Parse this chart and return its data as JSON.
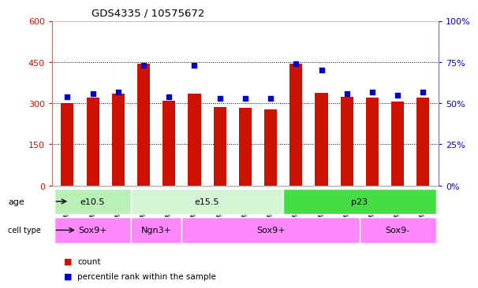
{
  "title": "GDS4335 / 10575672",
  "samples": [
    "GSM841156",
    "GSM841157",
    "GSM841158",
    "GSM841162",
    "GSM841163",
    "GSM841164",
    "GSM841159",
    "GSM841160",
    "GSM841161",
    "GSM841165",
    "GSM841166",
    "GSM841167",
    "GSM841168",
    "GSM841169",
    "GSM841170"
  ],
  "counts": [
    300,
    320,
    335,
    443,
    310,
    335,
    285,
    283,
    278,
    443,
    338,
    322,
    320,
    305,
    320
  ],
  "percentiles": [
    54,
    56,
    57,
    73,
    54,
    73,
    53,
    53,
    53,
    74,
    70,
    56,
    57,
    55,
    57
  ],
  "age_groups": [
    {
      "label": "e10.5",
      "start": 0,
      "end": 3,
      "color": "#b8f0b8"
    },
    {
      "label": "e15.5",
      "start": 3,
      "end": 9,
      "color": "#d4f5d4"
    },
    {
      "label": "p23",
      "start": 9,
      "end": 15,
      "color": "#44dd44"
    }
  ],
  "cell_type_groups": [
    {
      "label": "Sox9+",
      "start": 0,
      "end": 3,
      "color": "#ff88ff"
    },
    {
      "label": "Ngn3+",
      "start": 3,
      "end": 5,
      "color": "#ff88ff"
    },
    {
      "label": "Sox9+",
      "start": 5,
      "end": 12,
      "color": "#ff88ff"
    },
    {
      "label": "Sox9-",
      "start": 12,
      "end": 15,
      "color": "#ff88ff"
    }
  ],
  "bar_color": "#cc1100",
  "dot_color": "#0000cc",
  "left_axis_color": "#cc1100",
  "right_axis_color": "#0000cc",
  "ylim_left": [
    0,
    600
  ],
  "ylim_right": [
    0,
    100
  ],
  "yticks_left": [
    0,
    150,
    300,
    450,
    600
  ],
  "yticks_right": [
    0,
    25,
    50,
    75,
    100
  ],
  "background_color": "#ffffff",
  "plot_bg_color": "#ffffff",
  "xtick_bg_color": "#d8d8d8"
}
